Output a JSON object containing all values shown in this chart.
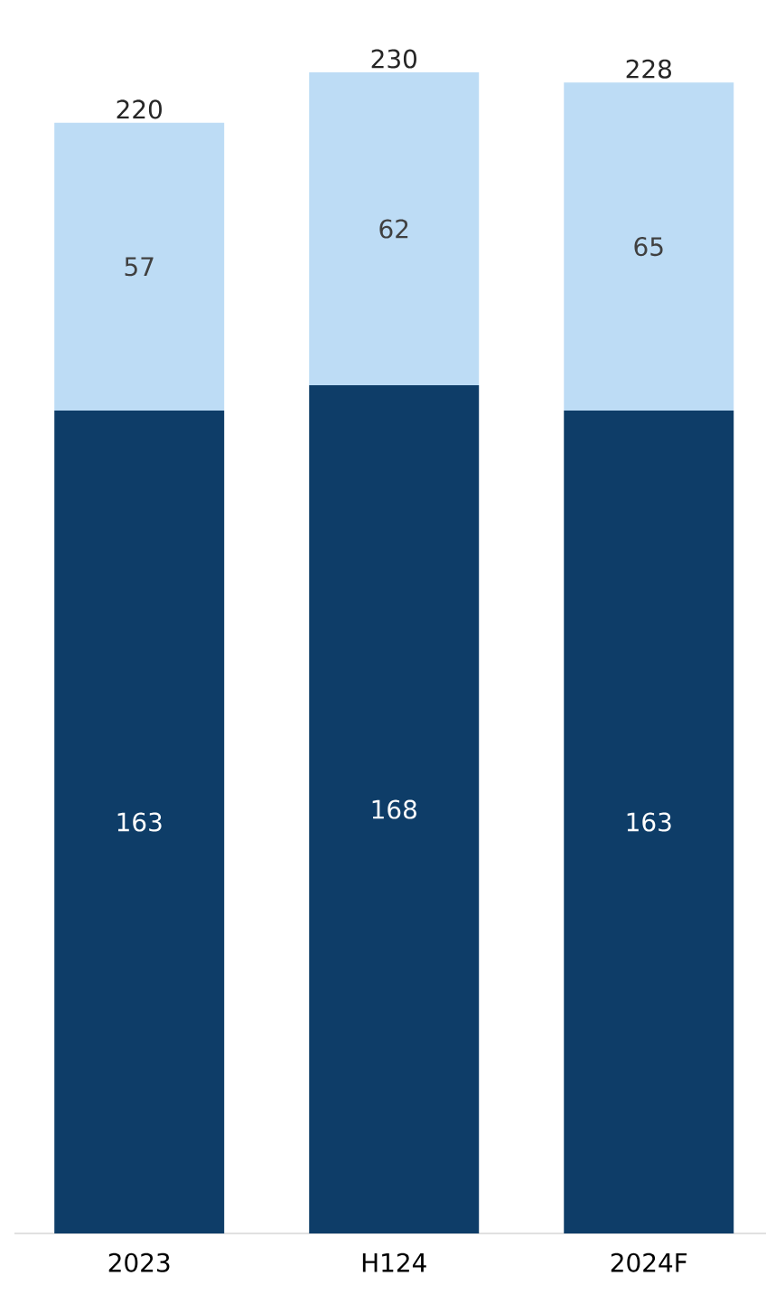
{
  "chart_data": {
    "type": "bar",
    "stacked": true,
    "data_labels": true,
    "categories": [
      "2023",
      "H124",
      "2024F"
    ],
    "series": [
      {
        "color": "#0e3d68",
        "values": [
          163,
          168,
          163
        ]
      },
      {
        "color": "#bddcf5",
        "values": [
          57,
          62,
          65
        ]
      }
    ],
    "totals": [
      "220",
      "230",
      "228"
    ]
  }
}
